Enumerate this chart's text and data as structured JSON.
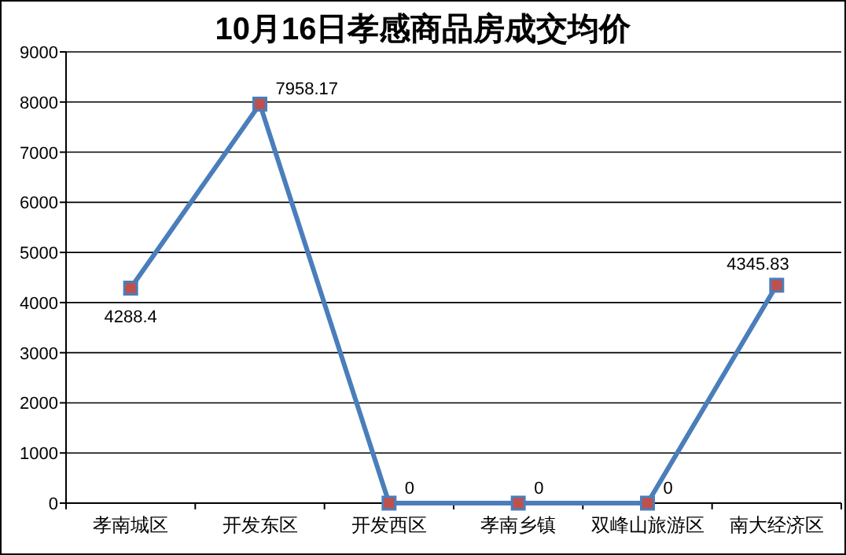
{
  "chart_data": {
    "type": "line",
    "title": "10月16日孝感商品房成交均价",
    "categories": [
      "孝南城区",
      "开发东区",
      "开发西区",
      "孝南乡镇",
      "双峰山旅游区",
      "南大经济区"
    ],
    "series": [
      {
        "color": "#4a7ebb",
        "values": [
          4288.4,
          7958.17,
          0,
          0,
          0,
          4345.83
        ]
      }
    ],
    "value_labels": [
      "4288.4",
      "7958.17",
      "0",
      "0",
      "0",
      "4345.83"
    ],
    "ylim": [
      0,
      9000
    ],
    "yticks": [
      0,
      1000,
      2000,
      3000,
      4000,
      5000,
      6000,
      7000,
      8000,
      9000
    ],
    "grid": "y",
    "marker": "square",
    "line_style": "solid"
  }
}
